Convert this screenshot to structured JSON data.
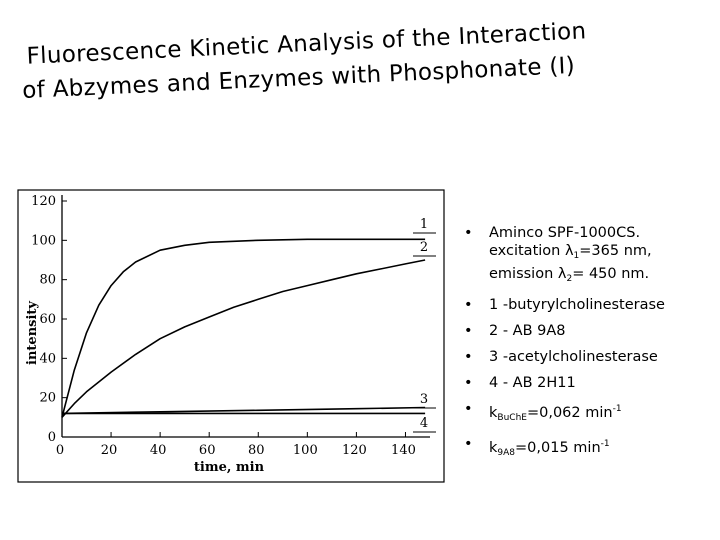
{
  "slide": {
    "title_line1": "Fluorescence Kinetic Analysis of the Interaction",
    "title_line2": "of Abzymes and Enzymes with Phosphonate (I)"
  },
  "notes": {
    "bullet": "•",
    "item1_line1": "Aminco SPF-1000CS.",
    "item1_excitation": "excitation λ",
    "item1_exc_sub": "1",
    "item1_exc_val": "=365 nm,",
    "item1_emission": "emission λ",
    "item1_em_sub": "2",
    "item1_em_val": "= 450 nm.",
    "item2": "1 -butyrylcholinesterase",
    "item3": "2 - AB 9A8",
    "item4": "3 -acetylcholinesterase",
    "item5": "4 - AB 2H11",
    "item6_k": "k",
    "item6_sub": "BuChE",
    "item6_val": "=0,062 min",
    "item6_sup": "-1",
    "item7_k": "k",
    "item7_sub": "9A8",
    "item7_val": "=0,015 min",
    "item7_sup": "-1"
  },
  "chart_data": {
    "type": "line",
    "xlabel": "time, min",
    "ylabel": "intensity",
    "xlim": [
      0,
      150
    ],
    "ylim": [
      0,
      120
    ],
    "xticks": [
      0,
      20,
      40,
      60,
      80,
      100,
      120,
      140
    ],
    "yticks": [
      0,
      20,
      40,
      60,
      80,
      100,
      120
    ],
    "grid": false,
    "legend": "none",
    "series": [
      {
        "name": "1",
        "x": [
          0,
          5,
          10,
          15,
          20,
          25,
          30,
          40,
          50,
          60,
          80,
          100,
          120,
          140,
          148
        ],
        "y": [
          10,
          34,
          53,
          67,
          77,
          84,
          89,
          95,
          97.5,
          99,
          100,
          100.5,
          100.5,
          100.5,
          100.5
        ]
      },
      {
        "name": "2",
        "x": [
          0,
          5,
          10,
          20,
          30,
          40,
          50,
          60,
          70,
          80,
          90,
          100,
          110,
          120,
          130,
          140,
          148
        ],
        "y": [
          10,
          17,
          23,
          33,
          42,
          50,
          56,
          61,
          66,
          70,
          74,
          77,
          80,
          83,
          85.5,
          88,
          90
        ]
      },
      {
        "name": "3",
        "x": [
          0,
          40,
          80,
          120,
          148
        ],
        "y": [
          12,
          12.8,
          13.6,
          14.4,
          15
        ]
      },
      {
        "name": "4",
        "x": [
          0,
          40,
          80,
          120,
          148
        ],
        "y": [
          12,
          12,
          12,
          12,
          12
        ]
      }
    ]
  }
}
